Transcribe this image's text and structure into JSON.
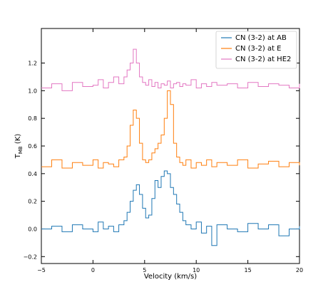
{
  "chart_data": {
    "type": "line",
    "step": true,
    "xlabel": "Velocity (km/s)",
    "ylabel_main": "T",
    "ylabel_sub": "MB",
    "ylabel_unit": " (K)",
    "xlim": [
      -5,
      20
    ],
    "ylim": [
      -0.25,
      1.45
    ],
    "x_ticks": [
      -5,
      0,
      5,
      10,
      15,
      20
    ],
    "x_tick_labels": [
      "−5",
      "0",
      "5",
      "10",
      "15",
      "20"
    ],
    "y_ticks": [
      -0.2,
      0.0,
      0.2,
      0.4,
      0.6,
      0.8,
      1.0,
      1.2
    ],
    "y_tick_labels": [
      "−0.2",
      "0.0",
      "0.2",
      "0.4",
      "0.6",
      "0.8",
      "1.0",
      "1.2"
    ],
    "grid": false,
    "legend_position": "top-right",
    "series": [
      {
        "name": "CN (3-2) at AB",
        "color": "#1f77b4",
        "x": [
          -5,
          -4,
          -3,
          -2,
          -1,
          0,
          0.5,
          1,
          1.5,
          2,
          2.5,
          3,
          3.3,
          3.6,
          3.9,
          4.2,
          4.5,
          4.8,
          5.1,
          5.4,
          5.7,
          6,
          6.3,
          6.6,
          6.9,
          7.2,
          7.5,
          7.8,
          8.1,
          8.4,
          8.7,
          9,
          9.5,
          10,
          10.5,
          11,
          11.5,
          12,
          13,
          14,
          15,
          16,
          17,
          18,
          19,
          20
        ],
        "values": [
          0.0,
          0.02,
          -0.02,
          0.03,
          0.0,
          -0.02,
          0.05,
          0.0,
          0.02,
          -0.02,
          0.03,
          0.06,
          0.12,
          0.2,
          0.28,
          0.32,
          0.25,
          0.15,
          0.08,
          0.1,
          0.22,
          0.35,
          0.3,
          0.38,
          0.42,
          0.4,
          0.3,
          0.25,
          0.18,
          0.12,
          0.06,
          0.03,
          0.0,
          0.05,
          -0.03,
          0.02,
          -0.12,
          0.03,
          0.0,
          -0.02,
          0.04,
          0.0,
          0.03,
          -0.05,
          0.0,
          0.02
        ]
      },
      {
        "name": "CN (3-2) at E",
        "color": "#ff7f0e",
        "x": [
          -5,
          -4,
          -3,
          -2,
          -1,
          0,
          0.5,
          1,
          1.5,
          2,
          2.5,
          3,
          3.3,
          3.6,
          3.9,
          4.2,
          4.5,
          4.8,
          5.1,
          5.4,
          5.7,
          6,
          6.3,
          6.6,
          6.9,
          7.2,
          7.5,
          7.8,
          8.1,
          8.4,
          8.7,
          9,
          9.5,
          10,
          10.5,
          11,
          11.5,
          12,
          13,
          14,
          15,
          16,
          17,
          18,
          19,
          20
        ],
        "values": [
          0.45,
          0.5,
          0.44,
          0.48,
          0.46,
          0.5,
          0.44,
          0.48,
          0.47,
          0.45,
          0.5,
          0.52,
          0.6,
          0.75,
          0.86,
          0.8,
          0.62,
          0.5,
          0.48,
          0.5,
          0.55,
          0.58,
          0.62,
          0.68,
          0.8,
          1.0,
          0.9,
          0.62,
          0.52,
          0.48,
          0.46,
          0.5,
          0.44,
          0.48,
          0.46,
          0.5,
          0.45,
          0.48,
          0.46,
          0.5,
          0.44,
          0.47,
          0.49,
          0.45,
          0.48,
          0.46
        ]
      },
      {
        "name": "CN (3-2) at HE2",
        "color": "#e377c2",
        "x": [
          -5,
          -4,
          -3,
          -2,
          -1,
          0,
          0.5,
          1,
          1.5,
          2,
          2.5,
          3,
          3.3,
          3.6,
          3.9,
          4.2,
          4.5,
          4.8,
          5.1,
          5.4,
          5.7,
          6,
          6.3,
          6.6,
          6.9,
          7.2,
          7.5,
          7.8,
          8.1,
          8.4,
          8.7,
          9,
          9.5,
          10,
          10.5,
          11,
          11.5,
          12,
          13,
          14,
          15,
          16,
          17,
          18,
          19,
          20
        ],
        "values": [
          1.02,
          1.05,
          1.0,
          1.06,
          1.03,
          1.04,
          1.08,
          1.02,
          1.06,
          1.1,
          1.05,
          1.1,
          1.15,
          1.2,
          1.3,
          1.2,
          1.1,
          1.06,
          1.04,
          1.08,
          1.03,
          1.06,
          1.02,
          1.05,
          1.04,
          1.07,
          1.02,
          1.05,
          1.06,
          1.03,
          1.05,
          1.04,
          1.08,
          1.02,
          1.05,
          1.03,
          1.06,
          1.04,
          1.05,
          1.02,
          1.06,
          1.03,
          1.05,
          1.04,
          1.02,
          1.05
        ]
      }
    ]
  }
}
